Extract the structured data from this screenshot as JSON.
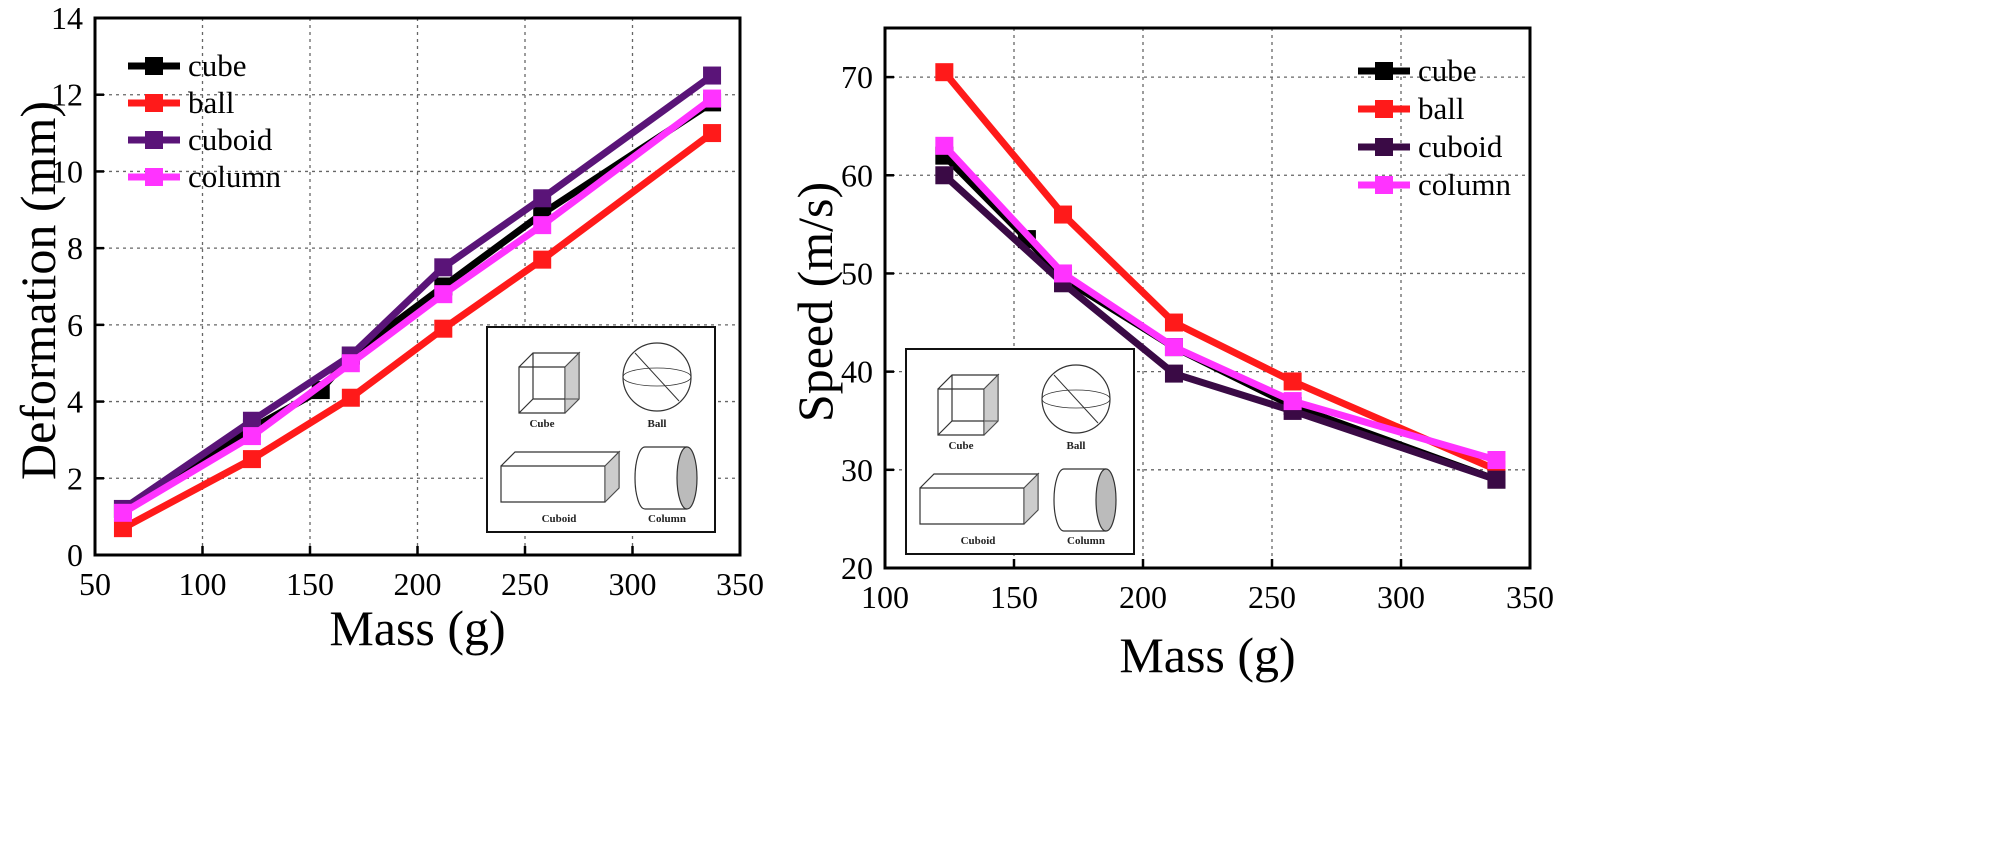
{
  "chart_data": [
    {
      "type": "line",
      "title": "",
      "xlabel": "Mass (g)",
      "ylabel": "Deformation (mm)",
      "xlim": [
        50,
        350
      ],
      "ylim": [
        0,
        14
      ],
      "xticks": [
        50,
        100,
        150,
        200,
        250,
        300,
        350
      ],
      "yticks": [
        0,
        2,
        4,
        6,
        8,
        10,
        12,
        14
      ],
      "grid": true,
      "legend_position": "top-left",
      "x": [
        63,
        123,
        169,
        212,
        258,
        337
      ],
      "series": [
        {
          "name": "cube",
          "color": "#000000",
          "x": [
            63,
            123,
            155,
            169,
            212,
            258,
            337
          ],
          "values": [
            1.2,
            3.3,
            4.3,
            5.2,
            7.0,
            8.9,
            11.8
          ]
        },
        {
          "name": "ball",
          "color": "#ff1a1a",
          "x": [
            63,
            123,
            169,
            212,
            258,
            337
          ],
          "values": [
            0.7,
            2.5,
            4.1,
            5.9,
            7.7,
            11.0
          ]
        },
        {
          "name": "cuboid",
          "color": "#5a1478",
          "x": [
            63,
            123,
            169,
            212,
            258,
            337
          ],
          "values": [
            1.2,
            3.5,
            5.2,
            7.5,
            9.3,
            12.5
          ]
        },
        {
          "name": "column",
          "color": "#ff33ff",
          "x": [
            63,
            123,
            169,
            212,
            258,
            337
          ],
          "values": [
            1.1,
            3.1,
            5.0,
            6.8,
            8.6,
            11.9
          ]
        }
      ],
      "inset_labels": [
        "Cube",
        "Ball",
        "Cuboid",
        "Column"
      ]
    },
    {
      "type": "line",
      "title": "",
      "xlabel": "Mass (g)",
      "ylabel": "Speed (m/s)",
      "xlim": [
        100,
        350
      ],
      "ylim": [
        20,
        75
      ],
      "xticks": [
        100,
        150,
        200,
        250,
        300,
        350
      ],
      "yticks": [
        20,
        30,
        40,
        50,
        60,
        70
      ],
      "grid": true,
      "legend_position": "top-right",
      "x": [
        123,
        169,
        212,
        258,
        337
      ],
      "series": [
        {
          "name": "cube",
          "color": "#000000",
          "x": [
            123,
            155,
            169,
            212,
            258,
            337
          ],
          "values": [
            62.0,
            53.5,
            49.5,
            42.5,
            36.5,
            29.0
          ]
        },
        {
          "name": "ball",
          "color": "#ff1a1a",
          "x": [
            123,
            169,
            212,
            258,
            337
          ],
          "values": [
            70.5,
            56.0,
            45.0,
            39.0,
            30.0
          ]
        },
        {
          "name": "cuboid",
          "color": "#3a0a45",
          "x": [
            123,
            169,
            212,
            258,
            337
          ],
          "values": [
            60.0,
            49.0,
            39.8,
            36.0,
            29.0
          ]
        },
        {
          "name": "column",
          "color": "#ff33ff",
          "x": [
            123,
            169,
            212,
            258,
            337
          ],
          "values": [
            63.0,
            50.0,
            42.5,
            37.0,
            31.0
          ]
        }
      ],
      "inset_labels": [
        "Cube",
        "Ball",
        "Cuboid",
        "Column"
      ]
    }
  ]
}
